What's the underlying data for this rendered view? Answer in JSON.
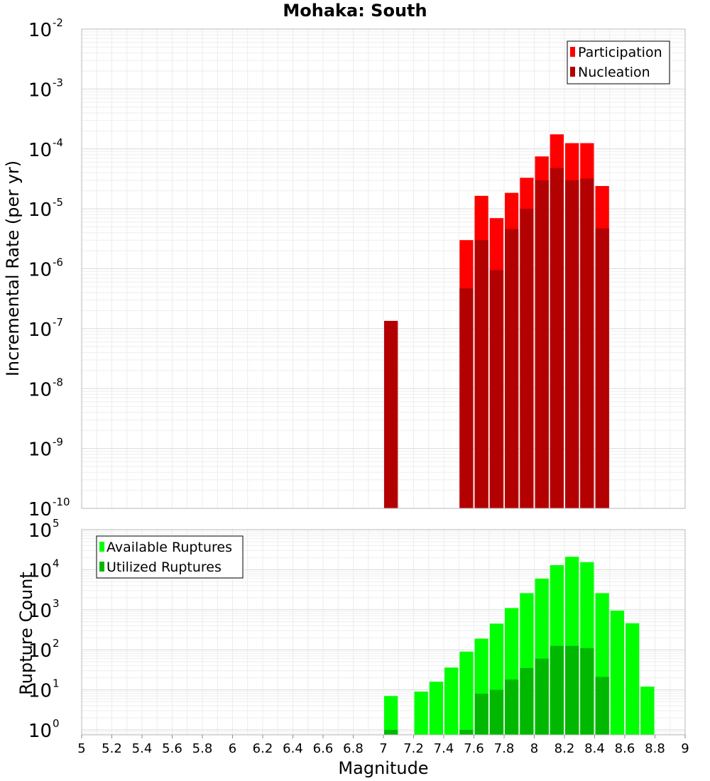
{
  "chart_data": [
    {
      "type": "bar",
      "title": "Mohaka: South",
      "xlabel": "",
      "ylabel": "Incremental Rate (per yr)",
      "yscale": "log",
      "ylim": [
        1e-10,
        0.01
      ],
      "xlim": [
        5,
        9
      ],
      "bin_width": 0.1,
      "legend_position": "top-right",
      "grid": true,
      "series": [
        {
          "name": "Participation",
          "color": "#ff0000",
          "x": [
            7.55,
            7.65,
            7.75,
            7.85,
            7.95,
            8.05,
            8.15,
            8.25,
            8.35,
            8.45
          ],
          "values": [
            3e-06,
            1.65e-05,
            7e-06,
            1.85e-05,
            3.3e-05,
            7.5e-05,
            0.000175,
            0.000125,
            0.000125,
            2.4e-05
          ]
        },
        {
          "name": "Nucleation",
          "color": "#b30000",
          "x": [
            7.05,
            7.55,
            7.65,
            7.75,
            7.85,
            7.95,
            8.05,
            8.15,
            8.25,
            8.35,
            8.45
          ],
          "values": [
            1.35e-07,
            4.7e-07,
            3e-06,
            9.5e-07,
            4.6e-06,
            1e-05,
            3e-05,
            4.8e-05,
            3e-05,
            3.2e-05,
            4.7e-06
          ]
        }
      ]
    },
    {
      "type": "bar",
      "title": "",
      "xlabel": "Magnitude",
      "ylabel": "Rupture Count",
      "yscale": "log",
      "ylim": [
        0.75,
        100000
      ],
      "xlim": [
        5,
        9
      ],
      "bin_width": 0.1,
      "legend_position": "top-left",
      "grid": true,
      "x_ticks": [
        "5",
        "5.2",
        "5.4",
        "5.6",
        "5.8",
        "6",
        "6.2",
        "6.4",
        "6.6",
        "6.8",
        "7",
        "7.2",
        "7.4",
        "7.6",
        "7.8",
        "8",
        "8.2",
        "8.4",
        "8.6",
        "8.8",
        "9"
      ],
      "series": [
        {
          "name": "Available Ruptures",
          "color": "#00ff00",
          "x": [
            7.05,
            7.25,
            7.35,
            7.45,
            7.55,
            7.65,
            7.75,
            7.85,
            7.95,
            8.05,
            8.15,
            8.25,
            8.35,
            8.45,
            8.55,
            8.65,
            8.75
          ],
          "values": [
            7,
            9,
            16,
            36,
            90,
            190,
            450,
            1100,
            2600,
            6000,
            13000,
            21000,
            15500,
            2600,
            950,
            460,
            12
          ]
        },
        {
          "name": "Utilized Ruptures",
          "color": "#00b800",
          "x": [
            7.05,
            7.55,
            7.65,
            7.75,
            7.85,
            7.95,
            8.05,
            8.15,
            8.25,
            8.35,
            8.45
          ],
          "values": [
            1,
            1,
            8,
            10,
            18,
            35,
            60,
            125,
            125,
            110,
            21
          ]
        }
      ]
    }
  ]
}
